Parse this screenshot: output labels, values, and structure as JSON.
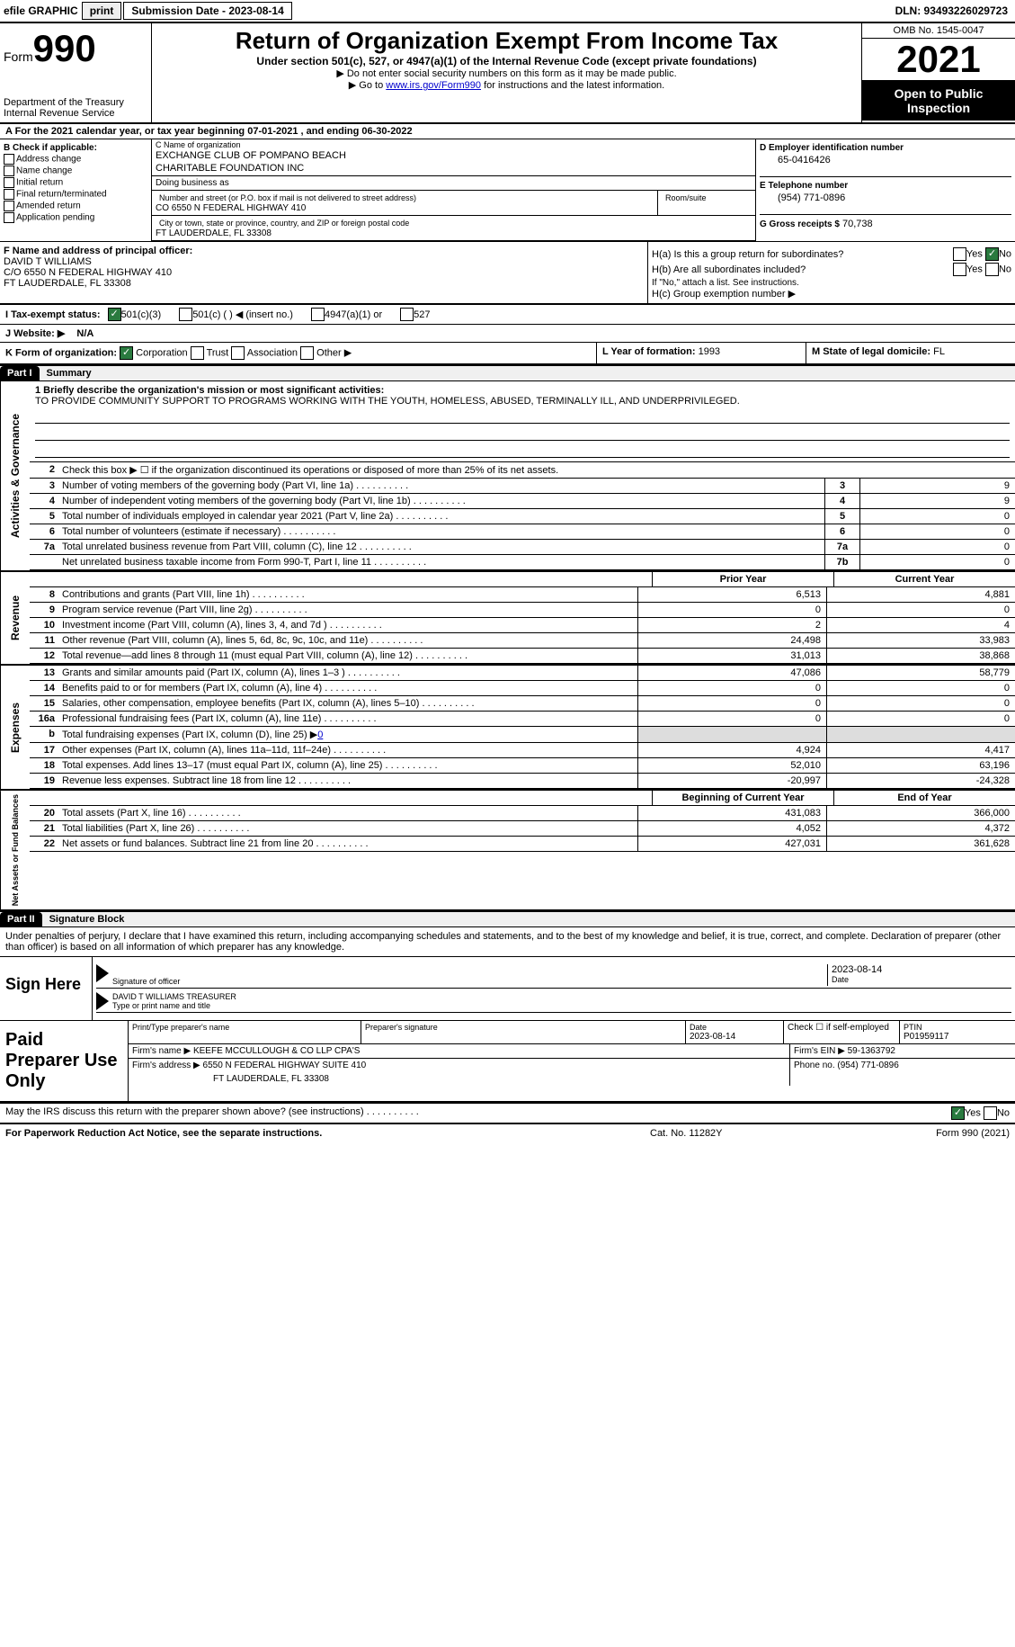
{
  "topbar": {
    "efile": "efile GRAPHIC",
    "print": "print",
    "sub_date": "Submission Date - 2023-08-14",
    "dln": "DLN: 93493226029723"
  },
  "header": {
    "form_label": "Form",
    "form_num": "990",
    "dept": "Department of the Treasury Internal Revenue Service",
    "title": "Return of Organization Exempt From Income Tax",
    "sub1": "Under section 501(c), 527, or 4947(a)(1) of the Internal Revenue Code (except private foundations)",
    "sub2": "▶ Do not enter social security numbers on this form as it may be made public.",
    "sub3_pre": "▶ Go to ",
    "sub3_link": "www.irs.gov/Form990",
    "sub3_post": " for instructions and the latest information.",
    "omb": "OMB No. 1545-0047",
    "year": "2021",
    "open1": "Open to Public",
    "open2": "Inspection"
  },
  "cal_year": {
    "pre": "A For the 2021 calendar year, or tax year beginning ",
    "begin": "07-01-2021",
    "mid": " , and ending ",
    "end": "06-30-2022"
  },
  "section_b": {
    "header": "B Check if applicable:",
    "addr_change": "Address change",
    "name_change": "Name change",
    "initial": "Initial return",
    "final": "Final return/terminated",
    "amended": "Amended return",
    "app_pending": "Application pending"
  },
  "section_c": {
    "name_label": "C Name of organization",
    "name1": "EXCHANGE CLUB OF POMPANO BEACH",
    "name2": "CHARITABLE FOUNDATION INC",
    "dba": "Doing business as",
    "street_label": "Number and street (or P.O. box if mail is not delivered to street address)",
    "street": "CO 6550 N FEDERAL HIGHWAY 410",
    "room_label": "Room/suite",
    "city_label": "City or town, state or province, country, and ZIP or foreign postal code",
    "city": "FT LAUDERDALE, FL  33308"
  },
  "section_d": {
    "label": "D Employer identification number",
    "ein": "65-0416426"
  },
  "section_e": {
    "label": "E Telephone number",
    "phone": "(954) 771-0896"
  },
  "section_g": {
    "label": "G Gross receipts $",
    "amount": "70,738"
  },
  "section_f": {
    "label": "F Name and address of principal officer:",
    "name": "DAVID T WILLIAMS",
    "addr1": "C/O 6550 N FEDERAL HIGHWAY 410",
    "addr2": "FT LAUDERDALE, FL  33308"
  },
  "section_h": {
    "ha": "H(a) Is this a group return for subordinates?",
    "hb": "H(b) Are all subordinates included?",
    "hb_note": "If \"No,\" attach a list. See instructions.",
    "hc": "H(c) Group exemption number ▶",
    "yes": "Yes",
    "no": "No"
  },
  "tax_status": {
    "label": "I Tax-exempt status:",
    "c3": "501(c)(3)",
    "c_other": "501(c) (  ) ◀ (insert no.)",
    "a1": "4947(a)(1) or",
    "s527": "527"
  },
  "website": {
    "label": "J Website: ▶",
    "value": "N/A"
  },
  "section_k": {
    "label": "K Form of organization:",
    "corp": "Corporation",
    "trust": "Trust",
    "assoc": "Association",
    "other": "Other ▶"
  },
  "section_l": {
    "label": "L Year of formation:",
    "value": "1993"
  },
  "section_m": {
    "label": "M State of legal domicile:",
    "value": "FL"
  },
  "part1": {
    "header": "Part I",
    "title": "Summary",
    "mission_label": "1  Briefly describe the organization's mission or most significant activities:",
    "mission": "TO PROVIDE COMMUNITY SUPPORT TO PROGRAMS WORKING WITH THE YOUTH, HOMELESS, ABUSED, TERMINALLY ILL, AND UNDERPRIVILEGED.",
    "line2": "Check this box ▶ ☐ if the organization discontinued its operations or disposed of more than 25% of its net assets.",
    "gov_label": "Activities & Governance",
    "rev_label": "Revenue",
    "exp_label": "Expenses",
    "net_label": "Net Assets or Fund Balances",
    "rows_gov": [
      {
        "n": "3",
        "desc": "Number of voting members of the governing body (Part VI, line 1a)",
        "box": "3",
        "val": "9"
      },
      {
        "n": "4",
        "desc": "Number of independent voting members of the governing body (Part VI, line 1b)",
        "box": "4",
        "val": "9"
      },
      {
        "n": "5",
        "desc": "Total number of individuals employed in calendar year 2021 (Part V, line 2a)",
        "box": "5",
        "val": "0"
      },
      {
        "n": "6",
        "desc": "Total number of volunteers (estimate if necessary)",
        "box": "6",
        "val": "0"
      },
      {
        "n": "7a",
        "desc": "Total unrelated business revenue from Part VIII, column (C), line 12",
        "box": "7a",
        "val": "0"
      },
      {
        "n": "",
        "desc": "Net unrelated business taxable income from Form 990-T, Part I, line 11",
        "box": "7b",
        "val": "0"
      }
    ],
    "prior_h": "Prior Year",
    "curr_h": "Current Year",
    "rows_rev": [
      {
        "n": "8",
        "desc": "Contributions and grants (Part VIII, line 1h)",
        "prior": "6,513",
        "curr": "4,881"
      },
      {
        "n": "9",
        "desc": "Program service revenue (Part VIII, line 2g)",
        "prior": "0",
        "curr": "0"
      },
      {
        "n": "10",
        "desc": "Investment income (Part VIII, column (A), lines 3, 4, and 7d )",
        "prior": "2",
        "curr": "4"
      },
      {
        "n": "11",
        "desc": "Other revenue (Part VIII, column (A), lines 5, 6d, 8c, 9c, 10c, and 11e)",
        "prior": "24,498",
        "curr": "33,983"
      },
      {
        "n": "12",
        "desc": "Total revenue—add lines 8 through 11 (must equal Part VIII, column (A), line 12)",
        "prior": "31,013",
        "curr": "38,868"
      }
    ],
    "rows_exp": [
      {
        "n": "13",
        "desc": "Grants and similar amounts paid (Part IX, column (A), lines 1–3 )",
        "prior": "47,086",
        "curr": "58,779"
      },
      {
        "n": "14",
        "desc": "Benefits paid to or for members (Part IX, column (A), line 4)",
        "prior": "0",
        "curr": "0"
      },
      {
        "n": "15",
        "desc": "Salaries, other compensation, employee benefits (Part IX, column (A), lines 5–10)",
        "prior": "0",
        "curr": "0"
      },
      {
        "n": "16a",
        "desc": "Professional fundraising fees (Part IX, column (A), line 11e)",
        "prior": "0",
        "curr": "0"
      }
    ],
    "row_16b": {
      "n": "b",
      "desc": "Total fundraising expenses (Part IX, column (D), line 25) ▶",
      "val": "0"
    },
    "rows_exp2": [
      {
        "n": "17",
        "desc": "Other expenses (Part IX, column (A), lines 11a–11d, 11f–24e)",
        "prior": "4,924",
        "curr": "4,417"
      },
      {
        "n": "18",
        "desc": "Total expenses. Add lines 13–17 (must equal Part IX, column (A), line 25)",
        "prior": "52,010",
        "curr": "63,196"
      },
      {
        "n": "19",
        "desc": "Revenue less expenses. Subtract line 18 from line 12",
        "prior": "-20,997",
        "curr": "-24,328"
      }
    ],
    "begin_h": "Beginning of Current Year",
    "end_h": "End of Year",
    "rows_net": [
      {
        "n": "20",
        "desc": "Total assets (Part X, line 16)",
        "prior": "431,083",
        "curr": "366,000"
      },
      {
        "n": "21",
        "desc": "Total liabilities (Part X, line 26)",
        "prior": "4,052",
        "curr": "4,372"
      },
      {
        "n": "22",
        "desc": "Net assets or fund balances. Subtract line 21 from line 20",
        "prior": "427,031",
        "curr": "361,628"
      }
    ]
  },
  "part2": {
    "header": "Part II",
    "title": "Signature Block",
    "declare": "Under penalties of perjury, I declare that I have examined this return, including accompanying schedules and statements, and to the best of my knowledge and belief, it is true, correct, and complete. Declaration of preparer (other than officer) is based on all information of which preparer has any knowledge.",
    "sign_here": "Sign Here",
    "sig_label": "Signature of officer",
    "sig_date": "2023-08-14",
    "sig_date_label": "Date",
    "name_title": "DAVID T WILLIAMS  TREASURER",
    "name_title_label": "Type or print name and title",
    "paid_label": "Paid Preparer Use Only",
    "prep_name_label": "Print/Type preparer's name",
    "prep_sig_label": "Preparer's signature",
    "prep_date_label": "Date",
    "prep_date": "2023-08-14",
    "self_emp": "Check ☐ if self-employed",
    "ptin_label": "PTIN",
    "ptin": "P01959117",
    "firm_name_label": "Firm's name ▶",
    "firm_name": "KEEFE MCCULLOUGH & CO LLP CPA'S",
    "firm_ein_label": "Firm's EIN ▶",
    "firm_ein": "59-1363792",
    "firm_addr_label": "Firm's address ▶",
    "firm_addr1": "6550 N FEDERAL HIGHWAY SUITE 410",
    "firm_addr2": "FT LAUDERDALE, FL  33308",
    "firm_phone_label": "Phone no.",
    "firm_phone": "(954) 771-0896"
  },
  "discuss": {
    "text": "May the IRS discuss this return with the preparer shown above? (see instructions)",
    "yes": "Yes",
    "no": "No"
  },
  "footer": {
    "left": "For Paperwork Reduction Act Notice, see the separate instructions.",
    "mid": "Cat. No. 11282Y",
    "right": "Form 990 (2021)"
  }
}
